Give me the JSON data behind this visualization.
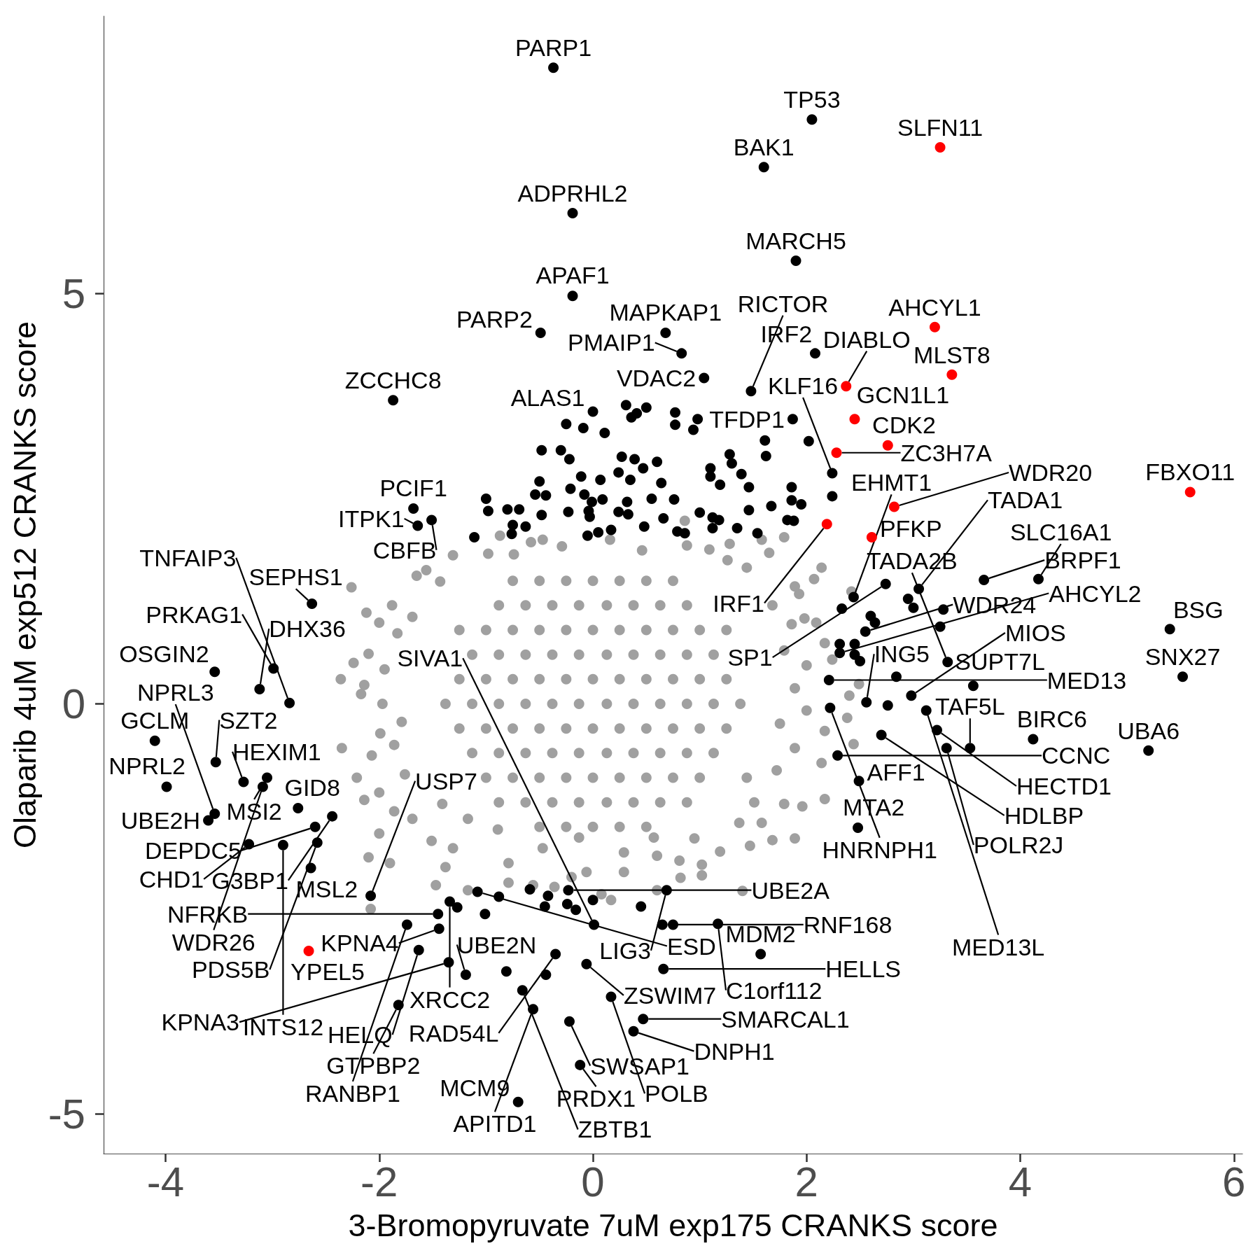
{
  "chart_data": {
    "type": "scatter",
    "xlabel": "3-Bromopyruvate 7uM exp175 CRANKS score",
    "ylabel": "Olaparib 4uM exp512 CRANKS score",
    "xlim": [
      -4.58,
      6.08
    ],
    "ylim": [
      -5.48,
      8.38
    ],
    "xticks": [
      -4,
      -2,
      0,
      2,
      4,
      6
    ],
    "yticks": [
      -5,
      0,
      5
    ],
    "grid": false,
    "marker": "circle",
    "series": [
      {
        "color": "#a0a0a0",
        "x": [
          -0.87,
          -0.58,
          -0.47,
          -0.98,
          -1.31,
          -1.65,
          -1.56,
          -1.43,
          -1.88,
          -2.12,
          -2.0,
          -2.26,
          -1.69,
          -1.83,
          -2.1,
          -2.24,
          -1.95,
          -2.36,
          -2.14,
          -2.17,
          -1.97,
          -1.79,
          -1.99,
          -1.86,
          -2.35,
          -2.07,
          -2.21,
          -2.0,
          -2.14,
          -1.76,
          -1.86,
          -1.69,
          -1.41,
          -2.0,
          -1.51,
          -2.1,
          -1.9,
          -1.31,
          -1.38,
          -0.79,
          -0.47,
          -0.13,
          0.29,
          0.57,
          0.6,
          -0.89,
          -1.17,
          -2.08,
          -1.47,
          -1.17,
          -0.79,
          -0.56,
          -0.36,
          -0.2,
          -0.06,
          0.17,
          0.08,
          0.29,
          0.6,
          0.82,
          1.02,
          1.4,
          0.86,
          1.28,
          1.58,
          1.79,
          1.65,
          2.14,
          2.07,
          1.93,
          2.42,
          2.09,
          1.98,
          2.17,
          2.24,
          2.49,
          2.4,
          2.38,
          2.44,
          2.17,
          2.14,
          2.17,
          1.96,
          1.79,
          1.89,
          1.68,
          1.58,
          1.47,
          1.19,
          1.02,
          1.37,
          0.95,
          0.81,
          1.51,
          1.44,
          1.72,
          1.89,
          1.75,
          2.0,
          1.89,
          2.0,
          1.79,
          1.86,
          1.68,
          1.89,
          1.44,
          1.26,
          1.09,
          0.88,
          -0.29,
          0.16,
          0.46,
          -0.74,
          -0.75,
          -0.5,
          -0.25,
          0,
          0.25,
          0.5,
          0.75,
          -0.88,
          -0.63,
          -0.38,
          -0.13,
          0.13,
          0.38,
          0.63,
          0.88,
          -1.25,
          -1,
          -0.75,
          -0.5,
          -0.25,
          0,
          0.25,
          0.5,
          0.75,
          1,
          1.25,
          -1.13,
          -0.88,
          -0.63,
          -0.38,
          -0.13,
          0.13,
          0.38,
          0.63,
          0.88,
          1.13,
          -1.25,
          -1,
          -0.75,
          -0.5,
          -0.25,
          0,
          0.25,
          0.5,
          0.75,
          1,
          1.25,
          -1.38,
          -1.13,
          -0.88,
          -0.63,
          -0.38,
          -0.13,
          0.13,
          0.38,
          0.63,
          0.88,
          1.13,
          1.38,
          -1.25,
          -1,
          -0.75,
          -0.5,
          -0.25,
          0,
          0.25,
          0.5,
          0.75,
          1,
          1.25,
          -1.13,
          -0.88,
          -0.63,
          -0.38,
          -0.13,
          0.13,
          0.38,
          0.63,
          0.88,
          1.13,
          -1,
          -0.75,
          -0.5,
          -0.25,
          0,
          0.25,
          0.5,
          0.75,
          1,
          -0.88,
          -0.63,
          -0.38,
          -0.13,
          0.13,
          0.38,
          0.63,
          0.88,
          -0.5,
          -0.25,
          0,
          0.25,
          0.5
        ],
        "values": [
          2.05,
          1.97,
          2.0,
          1.83,
          1.81,
          1.56,
          1.63,
          1.49,
          1.2,
          1.11,
          0.99,
          1.42,
          1.06,
          0.86,
          0.61,
          0.5,
          0.42,
          0.3,
          0.23,
          0.12,
          0,
          -0.22,
          -0.36,
          -0.5,
          -0.54,
          -0.63,
          -0.9,
          -1.08,
          -1.17,
          -0.86,
          -1.31,
          -1.4,
          -1.22,
          -1.58,
          -1.67,
          -1.87,
          -1.94,
          -1.76,
          -1.99,
          -1.94,
          -1.76,
          -1.63,
          -1.81,
          -1.63,
          -1.85,
          -1.53,
          -1.4,
          -2.5,
          -2.21,
          -2.27,
          -2.18,
          -2.21,
          -2.23,
          -2.11,
          -2.05,
          -2.39,
          -2.32,
          -2.05,
          -2.27,
          -2.12,
          -2.09,
          -2.28,
          2.23,
          1.95,
          2.0,
          2.03,
          1.84,
          1.66,
          1.52,
          1.34,
          1.37,
          0.99,
          1.04,
          0.74,
          0.54,
          0.24,
          0.1,
          -0.17,
          -0.49,
          -0.33,
          -0.72,
          -1.16,
          -1.25,
          -1.22,
          -1.64,
          -1.66,
          -1.45,
          -1.73,
          -1.8,
          -1.96,
          -1.45,
          -1.64,
          -1.91,
          -1.2,
          -0.9,
          -0.81,
          -0.54,
          -0.24,
          -0.08,
          0.19,
          0.47,
          0.65,
          0.97,
          1.2,
          1.43,
          1.66,
          1.75,
          1.88,
          1.93,
          1.92,
          2.0,
          1.87,
          1.82,
          1.5,
          1.5,
          1.5,
          1.5,
          1.5,
          1.5,
          1.5,
          1.2,
          1.2,
          1.2,
          1.2,
          1.2,
          1.2,
          1.2,
          1.2,
          0.9,
          0.9,
          0.9,
          0.9,
          0.9,
          0.9,
          0.9,
          0.9,
          0.9,
          0.9,
          0.9,
          0.6,
          0.6,
          0.6,
          0.6,
          0.6,
          0.6,
          0.6,
          0.6,
          0.6,
          0.6,
          0.3,
          0.3,
          0.3,
          0.3,
          0.3,
          0.3,
          0.3,
          0.3,
          0.3,
          0.3,
          0.3,
          0,
          0,
          0,
          0,
          0,
          0,
          0,
          0,
          0,
          0,
          0,
          0,
          -0.3,
          -0.3,
          -0.3,
          -0.3,
          -0.3,
          -0.3,
          -0.3,
          -0.3,
          -0.3,
          -0.3,
          -0.3,
          -0.6,
          -0.6,
          -0.6,
          -0.6,
          -0.6,
          -0.6,
          -0.6,
          -0.6,
          -0.6,
          -0.6,
          -0.9,
          -0.9,
          -0.9,
          -0.9,
          -0.9,
          -0.9,
          -0.9,
          -0.9,
          -0.9,
          -1.2,
          -1.2,
          -1.2,
          -1.2,
          -1.2,
          -1.2,
          -1.2,
          -1.2,
          -1.5,
          -1.5,
          -1.5,
          -1.5,
          -1.5
        ]
      },
      {
        "color": "#000000",
        "x": [
          -0.37,
          2.05,
          1.6,
          -0.19,
          1.9,
          -0.19,
          -0.49,
          0.68,
          2.08,
          0.83,
          1.04,
          1.48,
          -1.87,
          0,
          1.87,
          2.24,
          -1.68,
          -1.64,
          -1.51,
          2.74,
          3.05,
          2.44,
          3.66,
          4.17,
          -2.63,
          5.4,
          2.55,
          2.31,
          3.32,
          -3.54,
          -2.99,
          5.52,
          2.21,
          3.56,
          -3.12,
          2.98,
          2.56,
          -2.84,
          2.22,
          3.12,
          3.22,
          2.7,
          4.12,
          -4.1,
          3.31,
          3.53,
          5.2,
          2.29,
          -3.53,
          2.49,
          -3.27,
          -3.05,
          -3.09,
          -3.99,
          -2.76,
          -3.54,
          -2.44,
          -3.6,
          -2.6,
          2.48,
          -2.58,
          -3.22,
          -2.9,
          -2.64,
          -0.23,
          -1.08,
          0.69,
          -2.08,
          -1.34,
          1.17,
          0.65,
          -1.74,
          0.01,
          -1.45,
          -1.44,
          -1.63,
          -0.35,
          1.57,
          -1.35,
          -0.06,
          0.66,
          -1.19,
          -0.66,
          0.17,
          -1.82,
          -0.56,
          0.47,
          -0.22,
          0.38,
          -0.12,
          -0.7,
          -0.25,
          -0.09,
          0.11,
          0.31,
          0.5,
          0.41,
          0.36,
          0.77,
          0.77,
          0.98,
          0.94,
          1.61,
          2.02,
          1.28,
          1.62,
          -0.48,
          -0.3,
          -0.22,
          0.27,
          0.39,
          0.6,
          0.47,
          -0.11,
          0.07,
          0.24,
          0.35,
          0.64,
          -1.0,
          -0.5,
          -0.54,
          -0.44,
          -0.21,
          -0.08,
          -0.01,
          0.09,
          0.32,
          0.55,
          0.76,
          -0.98,
          -0.8,
          -0.69,
          -0.48,
          -0.23,
          -0.04,
          -0.03,
          0.24,
          0.33,
          0.66,
          -0.75,
          -0.63,
          -0.76,
          -1.11,
          -0.05,
          0.05,
          0.17,
          0.48,
          0.79,
          1.3,
          1.1,
          1.39,
          1.1,
          1.19,
          1.46,
          1.86,
          2.24,
          1.86,
          1.95,
          1.67,
          1.46,
          1.0,
          1.12,
          1.18,
          1.82,
          1.88,
          1.35,
          1.54,
          0.86,
          1.12,
          2.33,
          2.95,
          3.0,
          3.28,
          2.6,
          2.64,
          3.25,
          2.31,
          2.45,
          2.45,
          2.5,
          2.84,
          2.76,
          -1.01,
          -0.88,
          -1.27,
          -0.59,
          -0.42,
          -0.45,
          -0.24,
          -0.16,
          0,
          0.45,
          0.75,
          -0.81,
          -0.44
        ],
        "values": [
          7.75,
          7.12,
          6.54,
          5.98,
          5.4,
          4.97,
          4.52,
          4.52,
          4.27,
          4.27,
          3.97,
          3.81,
          3.7,
          3.56,
          3.47,
          2.81,
          2.38,
          2.17,
          2.24,
          1.46,
          1.4,
          1.3,
          1.51,
          1.52,
          1.22,
          0.91,
          0.88,
          0.62,
          0.51,
          0.39,
          0.43,
          0.33,
          0.29,
          0.22,
          0.18,
          0.1,
          0.02,
          0.01,
          -0.05,
          -0.08,
          -0.32,
          -0.38,
          -0.43,
          -0.45,
          -0.54,
          -0.54,
          -0.57,
          -0.63,
          -0.71,
          -0.94,
          -0.95,
          -0.9,
          -1.01,
          -1.01,
          -1.27,
          -1.34,
          -1.37,
          -1.42,
          -1.5,
          -1.51,
          -1.69,
          -1.71,
          -1.72,
          -2.0,
          -2.27,
          -2.29,
          -2.27,
          -2.34,
          -2.41,
          -2.68,
          -2.69,
          -2.69,
          -2.69,
          -2.56,
          -2.74,
          -3.0,
          -3.05,
          -3.05,
          -3.15,
          -3.17,
          -3.23,
          -3.3,
          -3.49,
          -3.57,
          -3.67,
          -3.72,
          -3.84,
          -3.87,
          -3.99,
          -4.4,
          -4.85,
          3.41,
          3.36,
          3.3,
          3.64,
          3.61,
          3.54,
          3.49,
          3.55,
          3.4,
          3.47,
          3.34,
          3.21,
          3.2,
          3.04,
          3.02,
          3.09,
          3.09,
          2.98,
          3.01,
          2.98,
          2.95,
          2.87,
          2.77,
          2.73,
          2.82,
          2.73,
          2.69,
          2.5,
          2.71,
          2.55,
          2.54,
          2.62,
          2.55,
          2.46,
          2.49,
          2.46,
          2.5,
          2.49,
          2.35,
          2.37,
          2.37,
          2.3,
          2.34,
          2.35,
          2.28,
          2.34,
          2.31,
          2.26,
          2.18,
          2.16,
          2.07,
          2.03,
          2.05,
          2.09,
          2.12,
          2.16,
          2.1,
          2.93,
          2.87,
          2.8,
          2.77,
          2.67,
          2.64,
          2.64,
          2.53,
          2.48,
          2.43,
          2.41,
          2.36,
          2.33,
          2.27,
          2.24,
          2.24,
          2.23,
          2.14,
          2.08,
          2.08,
          2.14,
          1.16,
          1.28,
          1.17,
          1.15,
          1.07,
          0.99,
          0.94,
          0.73,
          0.73,
          0.6,
          0.52,
          0.33,
          -0.02,
          -2.56,
          -2.35,
          -2.48,
          -2.26,
          -2.34,
          -2.47,
          -2.44,
          -2.51,
          -2.39,
          -2.47,
          -2.69,
          -3.26,
          -3.3
        ],
        "value_labels": [
          "PARP1",
          "TP53",
          "BAK1",
          "ADPRHL2",
          "MARCH5",
          "APAF1",
          "PARP2",
          "MAPKAP1",
          "IRF2",
          "PMAIP1",
          "VDAC2",
          "RICTOR",
          "ZCCHC8",
          "ALAS1",
          "TFDP1",
          "KLF16",
          "PCIF1",
          "ITPK1",
          "CBFB",
          "SP1",
          "TADA1",
          "EHMT1",
          "BRPF1",
          "SLC16A1",
          "SEPHS1",
          "BSG",
          "WDR24",
          "AHCYL2",
          "TADA2B",
          "OSGIN2",
          "PRKAG1",
          "SNX27",
          "MED13",
          "SUPT7L",
          "DHX36",
          "MIOS",
          "ING5",
          "TNFAIP3",
          "HNRNPH1",
          "MED13L",
          "HECTD1",
          "HDLBP",
          "BIRC6",
          "GCLM",
          "POLR2J",
          "TAF5L",
          "UBA6",
          "CCNC",
          "SZT2",
          "AFF1",
          "HEXIM1",
          "MSI2",
          "WDR26",
          "NPRL2",
          "GID8",
          "NPRL3",
          "G3BP1",
          "UBE2H",
          "DEPDC5",
          "MTA2",
          "PDS5B",
          "CHD1",
          "INTS12",
          "MSL2",
          "UBE2A",
          "ESD",
          "LIG3",
          "USP7",
          "XRCC2",
          "C1orf112",
          "RNF168",
          "RANBP1",
          "SIVA1",
          "NFRKB",
          "KPNA4",
          "HELQ",
          "RAD54L",
          "MDM2",
          "KPNA3",
          "ZSWIM7",
          "HELLS",
          "UBE2N",
          "ZBTB1",
          "POLB",
          "GTPBP2",
          "APITD1",
          "SMARCAL1",
          "SWSAP1",
          "DNPH1",
          "PRDX1",
          "MCM9",
          null,
          null,
          null,
          null,
          null,
          null,
          null,
          null,
          null,
          null,
          null,
          null,
          null,
          null,
          null,
          null,
          null,
          null,
          null,
          null,
          null,
          null,
          null,
          null,
          null,
          null,
          null,
          null,
          null,
          null,
          null,
          null,
          null,
          null,
          null,
          null,
          null,
          null,
          null,
          null,
          null,
          null,
          null,
          null,
          null,
          null,
          null,
          null,
          null,
          null,
          null,
          null,
          null,
          null,
          null,
          null,
          null,
          null,
          null,
          null,
          null,
          null,
          null,
          null,
          null,
          null,
          null,
          null,
          null,
          null,
          null,
          null,
          null,
          null,
          null,
          null,
          null,
          null,
          null,
          null,
          null,
          null,
          null,
          null,
          null,
          null,
          null,
          null,
          null,
          null,
          null,
          null,
          null,
          null,
          null,
          null,
          null,
          null,
          null,
          null,
          null,
          null,
          null,
          null
        ]
      },
      {
        "color": "#ff0000",
        "x": [
          3.25,
          3.2,
          3.36,
          2.37,
          2.45,
          2.76,
          2.28,
          2.82,
          5.59,
          2.19,
          2.61,
          -2.66
        ],
        "values": [
          6.78,
          4.59,
          4.01,
          3.87,
          3.47,
          3.15,
          3.06,
          2.4,
          2.58,
          2.19,
          2.03,
          -3.01
        ],
        "value_labels": [
          "SLFN11",
          "AHCYL1",
          "MLST8",
          "DIABLO",
          "GCN1L1",
          "CDK2",
          "ZC3H7A",
          "WDR20",
          "FBXO11",
          "IRF1",
          "PFKP",
          "YPEL5"
        ]
      }
    ]
  }
}
